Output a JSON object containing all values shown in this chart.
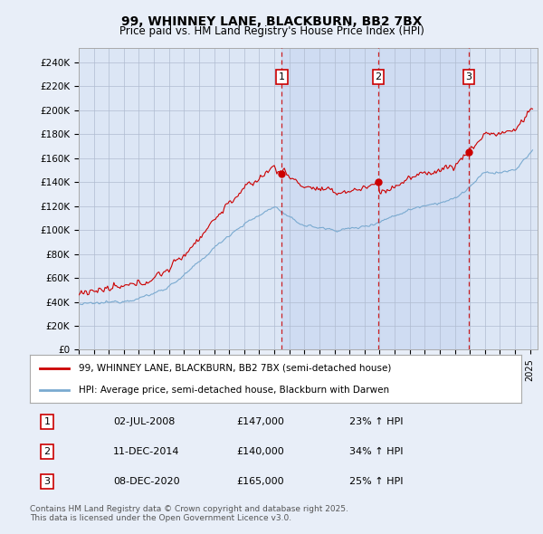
{
  "title": "99, WHINNEY LANE, BLACKBURN, BB2 7BX",
  "subtitle": "Price paid vs. HM Land Registry's House Price Index (HPI)",
  "legend_property": "99, WHINNEY LANE, BLACKBURN, BB2 7BX (semi-detached house)",
  "legend_hpi": "HPI: Average price, semi-detached house, Blackburn with Darwen",
  "background_color": "#e8eef8",
  "plot_bg_color": "#dce6f5",
  "shaded_color": "#ccd9ef",
  "grid_color": "#b0bcd0",
  "property_color": "#cc0000",
  "hpi_color": "#7aaad0",
  "sale_line_color": "#cc0000",
  "ylim": [
    0,
    252000
  ],
  "xlim": [
    1995.0,
    2025.5
  ],
  "yticks": [
    0,
    20000,
    40000,
    60000,
    80000,
    100000,
    120000,
    140000,
    160000,
    180000,
    200000,
    220000,
    240000
  ],
  "ytick_labels": [
    "£0",
    "£20K",
    "£40K",
    "£60K",
    "£80K",
    "£100K",
    "£120K",
    "£140K",
    "£160K",
    "£180K",
    "£200K",
    "£220K",
    "£240K"
  ],
  "xtick_years": [
    1995,
    1996,
    1997,
    1998,
    1999,
    2000,
    2001,
    2002,
    2003,
    2004,
    2005,
    2006,
    2007,
    2008,
    2009,
    2010,
    2011,
    2012,
    2013,
    2014,
    2015,
    2016,
    2017,
    2018,
    2019,
    2020,
    2021,
    2022,
    2023,
    2024,
    2025
  ],
  "sales": [
    {
      "num": 1,
      "date": "02-JUL-2008",
      "price": 147000,
      "year": 2008.5,
      "hpi_pct": "23% ↑ HPI"
    },
    {
      "num": 2,
      "date": "11-DEC-2014",
      "price": 140000,
      "year": 2014.92,
      "hpi_pct": "34% ↑ HPI"
    },
    {
      "num": 3,
      "date": "08-DEC-2020",
      "price": 165000,
      "year": 2020.92,
      "hpi_pct": "25% ↑ HPI"
    }
  ],
  "footnote": "Contains HM Land Registry data © Crown copyright and database right 2025.\nThis data is licensed under the Open Government Licence v3.0."
}
